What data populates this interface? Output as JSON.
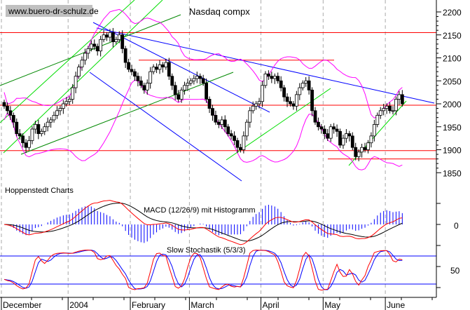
{
  "chart_data": {
    "type": "candlestick",
    "title": "Nasdaq compx",
    "watermark": "www.buero-dr-schulz.de",
    "credit": "Hoppenstedt Charts",
    "y_ticks": [
      "2200",
      "2150",
      "2100",
      "2050",
      "2000",
      "1950",
      "1900",
      "1850"
    ],
    "ylim": [
      1830,
      2230
    ],
    "x_labels": [
      "December",
      "2004",
      "February",
      "March",
      "April",
      "May",
      "June"
    ],
    "months": [
      {
        "label": "December",
        "closes": [
          1995,
          1985,
          1975,
          1960,
          1935,
          1930,
          1915,
          1905,
          1920,
          1945,
          1955,
          1935,
          1940,
          1950,
          1960,
          1965,
          1975,
          1985,
          1990,
          2000,
          2005
        ]
      },
      {
        "label": "2004",
        "closes": [
          2010,
          2035,
          2060,
          2080,
          2095,
          2110,
          2120,
          2130,
          2125,
          2115,
          2140,
          2150,
          2145,
          2155,
          2135,
          2140,
          2150,
          2120,
          2090,
          2075
        ]
      },
      {
        "label": "February",
        "closes": [
          2070,
          2060,
          2050,
          2040,
          2030,
          2045,
          2070,
          2080,
          2075,
          2085,
          2080,
          2090,
          2060,
          2040,
          2020,
          2010,
          2030,
          2040,
          2045
        ]
      },
      {
        "label": "March",
        "closes": [
          2050,
          2055,
          2060,
          2055,
          2045,
          2010,
          1990,
          1975,
          1960,
          1955,
          1965,
          1950,
          1935,
          1930,
          1920,
          1905,
          1900,
          1930,
          1960,
          1985,
          1995,
          2000,
          2005
        ]
      },
      {
        "label": "April",
        "closes": [
          2040,
          2065,
          2060,
          2055,
          2060,
          2050,
          2035,
          2015,
          2005,
          2000,
          1995,
          2020,
          2035,
          2045,
          2050,
          2030,
          1985,
          1960,
          1950,
          1945
        ]
      },
      {
        "label": "May",
        "closes": [
          1935,
          1925,
          1950,
          1945,
          1940,
          1910,
          1925,
          1935,
          1930,
          1905,
          1885,
          1895,
          1905,
          1900,
          1915,
          1930,
          1955,
          1975,
          1985,
          1990
        ]
      },
      {
        "label": "June",
        "closes": [
          1995,
          1985,
          1985,
          2010,
          2020,
          2000
        ]
      }
    ],
    "horizontal_levels": [
      2155,
      2095,
      1997,
      1898,
      1880
    ],
    "overlays": [
      "Bollinger bands"
    ],
    "indicators": [
      {
        "label": "MACD (12/26/9) mit Histogramm",
        "y_tick": "0"
      },
      {
        "label": "Slow Stochastik (5/3/3)",
        "y_tick": "50",
        "levels": [
          20,
          80
        ]
      }
    ],
    "colors": {
      "levels": "#ff0000",
      "bands": "#ff00ff",
      "trend_blue": "#0000ff",
      "trend_green": "#00dd00",
      "trend_darkgreen": "#008800",
      "macd": "#ff0000",
      "signal": "#000000",
      "histogram": "#0000ff",
      "stoch_k": "#ff0000",
      "stoch_d": "#0000ff"
    }
  }
}
